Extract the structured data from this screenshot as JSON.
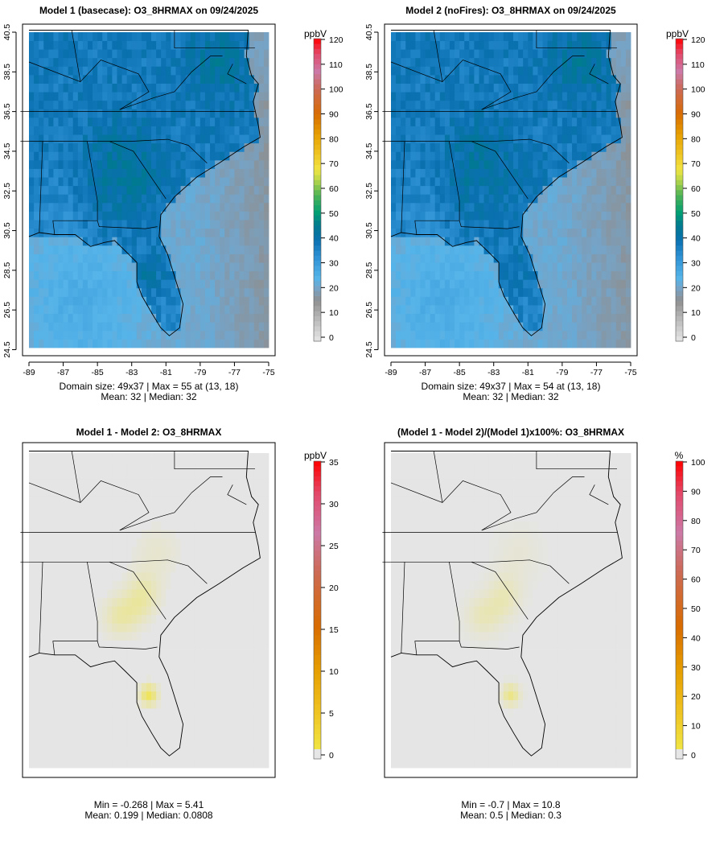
{
  "panels": [
    {
      "id": "model1",
      "title": "Model 1 (basecase): O3_8HRMAX on 09/24/2025",
      "unit": "ppbV",
      "colorbar_ticks": [
        "0",
        "10",
        "20",
        "30",
        "40",
        "50",
        "60",
        "70",
        "80",
        "90",
        "100",
        "110",
        "120"
      ],
      "colorbar_range": [
        0,
        120
      ],
      "stats": [
        "Domain size: 49x37 | Max = 55 at (13, 18)",
        "Mean: 32 |  Median: 32"
      ],
      "max": 55,
      "mean": 32,
      "median": 32
    },
    {
      "id": "model2",
      "title": "Model 2 (noFires): O3_8HRMAX on 09/24/2025",
      "unit": "ppbV",
      "colorbar_ticks": [
        "0",
        "10",
        "20",
        "30",
        "40",
        "50",
        "60",
        "70",
        "80",
        "90",
        "100",
        "110",
        "120"
      ],
      "colorbar_range": [
        0,
        120
      ],
      "stats": [
        "Domain size: 49x37 | Max = 54 at (13, 18)",
        "Mean: 32 |  Median: 32"
      ],
      "max": 54,
      "mean": 32,
      "median": 32
    },
    {
      "id": "diff",
      "title": "Model 1 - Model 2: O3_8HRMAX",
      "unit": "ppbV",
      "colorbar_ticks": [
        "0",
        "5",
        "10",
        "15",
        "20",
        "25",
        "30",
        "35"
      ],
      "colorbar_range": [
        0,
        35
      ],
      "stats": [
        "Min = -0.268 | Max = 5.41",
        "Mean: 0.199 |  Median: 0.0808"
      ],
      "min": -0.268,
      "max": 5.41,
      "mean": 0.199,
      "median": 0.0808
    },
    {
      "id": "pctdiff",
      "title": "(Model 1 - Model 2)/(Model 1)x100%: O3_8HRMAX",
      "unit": "%",
      "colorbar_ticks": [
        "0",
        "10",
        "20",
        "30",
        "40",
        "50",
        "60",
        "70",
        "80",
        "90",
        "100"
      ],
      "colorbar_range": [
        0,
        100
      ],
      "stats": [
        "Min = -0.7 | Max = 10.8",
        "Mean: 0.5 |  Median: 0.3"
      ],
      "min": -0.7,
      "max": 10.8,
      "mean": 0.5,
      "median": 0.3
    }
  ],
  "axes": {
    "lon_ticks": [
      "-89",
      "-87",
      "-85",
      "-83",
      "-81",
      "-79",
      "-77",
      "-75"
    ],
    "lat_ticks": [
      "24.5",
      "26.5",
      "28.5",
      "30.5",
      "32.5",
      "34.5",
      "36.5",
      "38.5",
      "40.5"
    ]
  },
  "grid": {
    "cols": 49,
    "rows": 37,
    "lon_range": [
      -89,
      -75
    ],
    "lat_range": [
      24.6,
      40.5
    ]
  },
  "colors": {
    "scale_stops": [
      [
        0,
        "#e6e6e6"
      ],
      [
        10,
        "#b3b3b3"
      ],
      [
        16,
        "#8f8f8f"
      ],
      [
        21,
        "#76a3c6"
      ],
      [
        25,
        "#56b4e9"
      ],
      [
        34,
        "#2b8fd2"
      ],
      [
        40,
        "#0a70b0"
      ],
      [
        46,
        "#007a90"
      ],
      [
        51,
        "#009e73"
      ],
      [
        58,
        "#4fb356"
      ],
      [
        64,
        "#b8d64a"
      ],
      [
        68,
        "#f0e442"
      ],
      [
        75,
        "#efc11f"
      ],
      [
        82,
        "#e69f00"
      ],
      [
        90,
        "#d86b00"
      ],
      [
        100,
        "#cc6a55"
      ],
      [
        107,
        "#cc79a7"
      ],
      [
        114,
        "#e24a6c"
      ],
      [
        120,
        "#ff0000"
      ]
    ],
    "no_data": "#e5e5e5"
  }
}
